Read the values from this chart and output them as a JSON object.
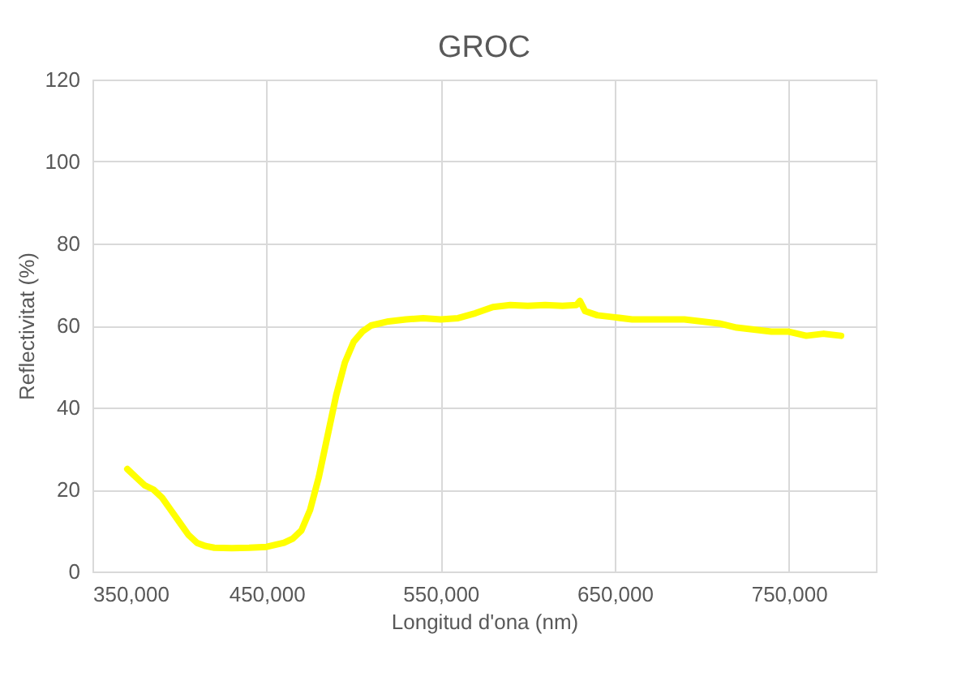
{
  "chart_data": {
    "type": "line",
    "title": "GROC",
    "xlabel": "Longitud d'ona (nm)",
    "ylabel": "Reflectivitat (%)",
    "xlim": [
      350000,
      800000
    ],
    "xticks": [
      {
        "value": 350000,
        "label": "350,000"
      },
      {
        "value": 450000,
        "label": "450,000"
      },
      {
        "value": 550000,
        "label": "550,000"
      },
      {
        "value": 650000,
        "label": "650,000"
      },
      {
        "value": 750000,
        "label": "750,000"
      }
    ],
    "ylim": [
      0,
      120
    ],
    "yticks": [
      0,
      20,
      40,
      60,
      80,
      100,
      120
    ],
    "grid": true,
    "line_style": "solid",
    "marker": "none",
    "series": [
      {
        "color": "#ffff00",
        "x": [
          370000,
          375000,
          380000,
          385000,
          390000,
          395000,
          400000,
          405000,
          410000,
          415000,
          420000,
          430000,
          440000,
          450000,
          460000,
          465000,
          470000,
          475000,
          480000,
          485000,
          490000,
          495000,
          500000,
          505000,
          510000,
          520000,
          530000,
          540000,
          550000,
          560000,
          570000,
          580000,
          590000,
          600000,
          610000,
          620000,
          628000,
          630000,
          633000,
          640000,
          650000,
          660000,
          670000,
          680000,
          690000,
          700000,
          710000,
          720000,
          730000,
          740000,
          750000,
          760000,
          770000,
          780000
        ],
        "values": [
          25,
          23,
          21,
          20,
          18,
          15,
          12,
          9,
          7,
          6.2,
          5.8,
          5.7,
          5.8,
          6,
          7,
          8,
          10,
          15,
          23,
          33,
          43,
          51,
          56,
          58.5,
          60,
          61,
          61.5,
          61.8,
          61.5,
          61.8,
          63,
          64.5,
          65,
          64.8,
          65,
          64.8,
          65,
          66,
          63.5,
          62.5,
          62,
          61.5,
          61.5,
          61.5,
          61.5,
          61,
          60.5,
          59.5,
          59,
          58.5,
          58.5,
          57.5,
          58,
          57.5
        ]
      }
    ]
  }
}
